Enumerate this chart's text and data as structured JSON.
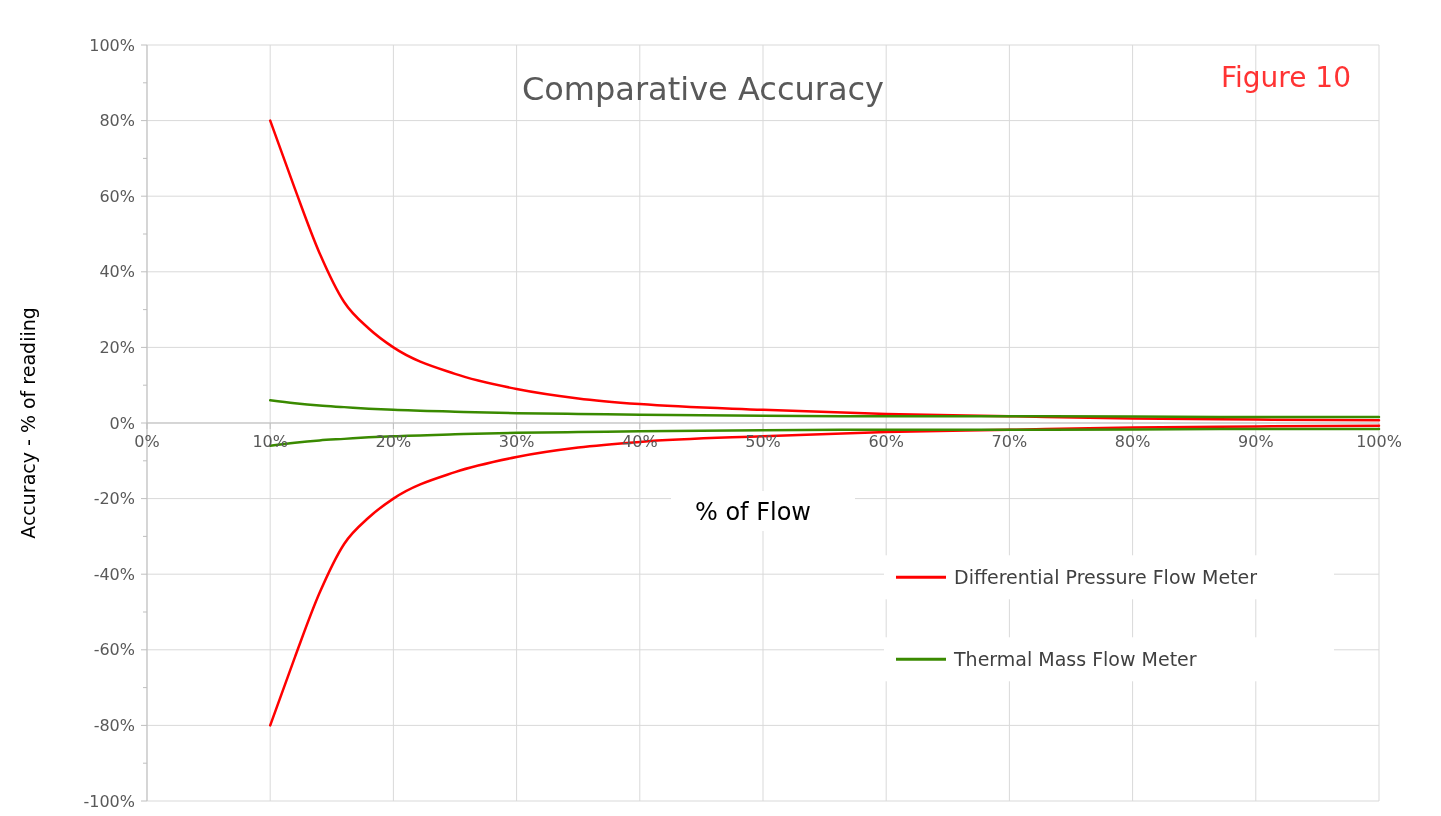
{
  "chart_data": {
    "type": "line",
    "title": "Comparative Accuracy",
    "xlabel": "% of Flow",
    "ylabel": "Accuracy - % of readiing",
    "annotations": [
      "Figure 10"
    ],
    "x": [
      10,
      12,
      14,
      16,
      18,
      20,
      25,
      30,
      35,
      40,
      50,
      60,
      70,
      80,
      90,
      100
    ],
    "series": [
      {
        "name": "Differential Pressure Flow Meter",
        "color": "#ff0000",
        "values": [
          80,
          62,
          45,
          32,
          25,
          20,
          13,
          9,
          6.5,
          5,
          3.5,
          2.4,
          1.8,
          1.2,
          0.9,
          0.7
        ]
      },
      {
        "color": "#ff0000",
        "values": [
          -80,
          -62,
          -45,
          -32,
          -25,
          -20,
          -13,
          -9,
          -6.5,
          -5,
          -3.5,
          -2.4,
          -1.8,
          -1.2,
          -0.9,
          -0.7
        ]
      },
      {
        "name": "Thermal Mass Flow Meter",
        "color": "#3a8a00",
        "values": [
          6,
          5.2,
          4.6,
          4.2,
          3.8,
          3.5,
          3,
          2.6,
          2.4,
          2.2,
          1.9,
          1.8,
          1.8,
          1.7,
          1.6,
          1.6
        ]
      },
      {
        "color": "#3a8a00",
        "values": [
          -6,
          -5.2,
          -4.6,
          -4.2,
          -3.8,
          -3.5,
          -3,
          -2.6,
          -2.4,
          -2.2,
          -1.9,
          -1.8,
          -1.8,
          -1.7,
          -1.6,
          -1.6
        ]
      }
    ],
    "xlim": [
      0,
      100
    ],
    "xticks": [
      {
        "value": 0,
        "label": "0%"
      },
      {
        "value": 10,
        "label": "10%"
      },
      {
        "value": 20,
        "label": "20%"
      },
      {
        "value": 30,
        "label": "30%"
      },
      {
        "value": 40,
        "label": "40%"
      },
      {
        "value": 50,
        "label": "50%"
      },
      {
        "value": 60,
        "label": "60%"
      },
      {
        "value": 70,
        "label": "70%"
      },
      {
        "value": 80,
        "label": "80%"
      },
      {
        "value": 90,
        "label": "90%"
      },
      {
        "value": 100,
        "label": "100%"
      }
    ],
    "ylim": [
      -100,
      100
    ],
    "yticks": [
      {
        "value": -100,
        "label": "-100%"
      },
      {
        "value": -80,
        "label": "-80%"
      },
      {
        "value": -60,
        "label": "-60%"
      },
      {
        "value": -40,
        "label": "-40%"
      },
      {
        "value": -20,
        "label": "-20%"
      },
      {
        "value": 0,
        "label": "0%"
      },
      {
        "value": 20,
        "label": "20%"
      },
      {
        "value": 40,
        "label": "40%"
      },
      {
        "value": 60,
        "label": "60%"
      },
      {
        "value": 80,
        "label": "80%"
      },
      {
        "value": 100,
        "label": "100%"
      }
    ],
    "grid": true,
    "legend": "bottom right",
    "marker": "none",
    "line_style": "solid"
  }
}
